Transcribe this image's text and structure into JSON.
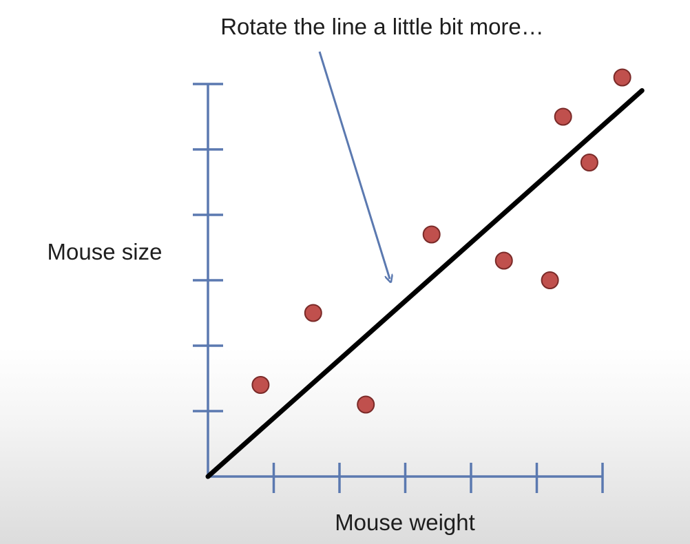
{
  "chart_data": {
    "type": "scatter",
    "title": "Rotate the line a little bit more…",
    "xlabel": "Mouse weight",
    "ylabel": "Mouse size",
    "xlim": [
      0,
      6
    ],
    "ylim": [
      0,
      6
    ],
    "x_ticks": [
      1,
      2,
      3,
      4,
      5,
      6
    ],
    "y_ticks": [
      1,
      2,
      3,
      4,
      5,
      6
    ],
    "grid": false,
    "points": [
      {
        "x": 0.8,
        "y": 1.4
      },
      {
        "x": 1.6,
        "y": 2.5
      },
      {
        "x": 2.4,
        "y": 1.1
      },
      {
        "x": 3.4,
        "y": 3.7
      },
      {
        "x": 4.5,
        "y": 3.3
      },
      {
        "x": 5.2,
        "y": 3.0
      },
      {
        "x": 5.4,
        "y": 5.5
      },
      {
        "x": 5.8,
        "y": 4.8
      },
      {
        "x": 6.3,
        "y": 6.1
      }
    ],
    "fit_line": {
      "x1": 0,
      "y1": 0,
      "x2": 6.6,
      "y2": 5.9
    },
    "colors": {
      "axis": "#5b79b0",
      "point_fill": "#c0504d",
      "point_stroke": "#7a2a28",
      "line": "#000000",
      "arrow": "#5b79b0"
    }
  }
}
